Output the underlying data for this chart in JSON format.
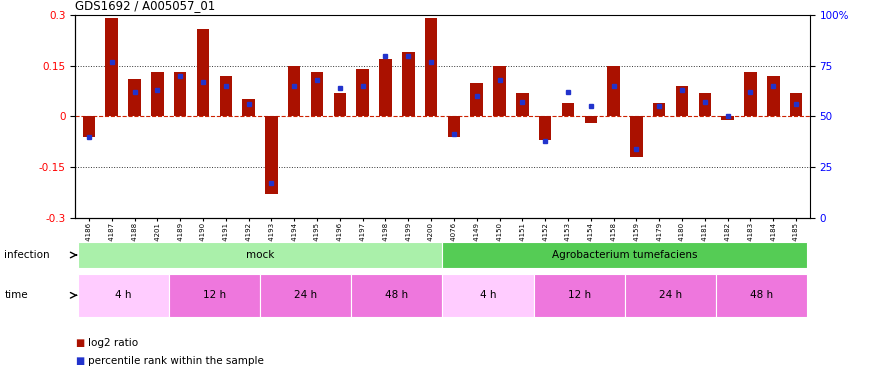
{
  "title": "GDS1692 / A005057_01",
  "samples": [
    "GSM94186",
    "GSM94187",
    "GSM94188",
    "GSM94201",
    "GSM94189",
    "GSM94190",
    "GSM94191",
    "GSM94192",
    "GSM94193",
    "GSM94194",
    "GSM94195",
    "GSM94196",
    "GSM94197",
    "GSM94198",
    "GSM94199",
    "GSM94200",
    "GSM94076",
    "GSM94149",
    "GSM94150",
    "GSM94151",
    "GSM94152",
    "GSM94153",
    "GSM94154",
    "GSM94158",
    "GSM94159",
    "GSM94179",
    "GSM94180",
    "GSM94181",
    "GSM94182",
    "GSM94183",
    "GSM94184",
    "GSM94185"
  ],
  "log2_ratio": [
    -0.06,
    0.29,
    0.11,
    0.13,
    0.13,
    0.26,
    0.12,
    0.05,
    -0.23,
    0.15,
    0.13,
    0.07,
    0.14,
    0.17,
    0.19,
    0.29,
    -0.06,
    0.1,
    0.15,
    0.07,
    -0.07,
    0.04,
    -0.02,
    0.15,
    -0.12,
    0.04,
    0.09,
    0.07,
    -0.01,
    0.13,
    0.12,
    0.07
  ],
  "percentile_rank": [
    40,
    77,
    62,
    63,
    70,
    67,
    65,
    56,
    17,
    65,
    68,
    64,
    65,
    80,
    80,
    77,
    41,
    60,
    68,
    57,
    38,
    62,
    55,
    65,
    34,
    55,
    63,
    57,
    50,
    62,
    65,
    56
  ],
  "bar_color": "#aa1100",
  "dot_color": "#2233cc",
  "ylim": [
    -0.3,
    0.3
  ],
  "yticks_left": [
    -0.3,
    -0.15,
    0.0,
    0.15,
    0.3
  ],
  "yticks_right": [
    0,
    25,
    50,
    75,
    100
  ],
  "ytick_labels_left": [
    "-0.3",
    "-0.15",
    "0",
    "0.15",
    "0.3"
  ],
  "ytick_labels_right": [
    "0",
    "25",
    "50",
    "75",
    "100%"
  ],
  "infection_groups": [
    {
      "label": "mock",
      "start": 0,
      "end": 16,
      "color": "#aaf0aa"
    },
    {
      "label": "Agrobacterium tumefaciens",
      "start": 16,
      "end": 32,
      "color": "#55cc55"
    }
  ],
  "time_groups": [
    {
      "label": "4 h",
      "start": 0,
      "end": 4,
      "color": "#ffccff"
    },
    {
      "label": "12 h",
      "start": 4,
      "end": 8,
      "color": "#ee77dd"
    },
    {
      "label": "24 h",
      "start": 8,
      "end": 12,
      "color": "#ee77dd"
    },
    {
      "label": "48 h",
      "start": 12,
      "end": 16,
      "color": "#ee77dd"
    },
    {
      "label": "4 h",
      "start": 16,
      "end": 20,
      "color": "#ffccff"
    },
    {
      "label": "12 h",
      "start": 20,
      "end": 24,
      "color": "#ee77dd"
    },
    {
      "label": "24 h",
      "start": 24,
      "end": 28,
      "color": "#ee77dd"
    },
    {
      "label": "48 h",
      "start": 28,
      "end": 32,
      "color": "#ee77dd"
    }
  ],
  "background_color": "#ffffff",
  "hline_color": "#cc2200",
  "dotted_line_color": "#333333"
}
